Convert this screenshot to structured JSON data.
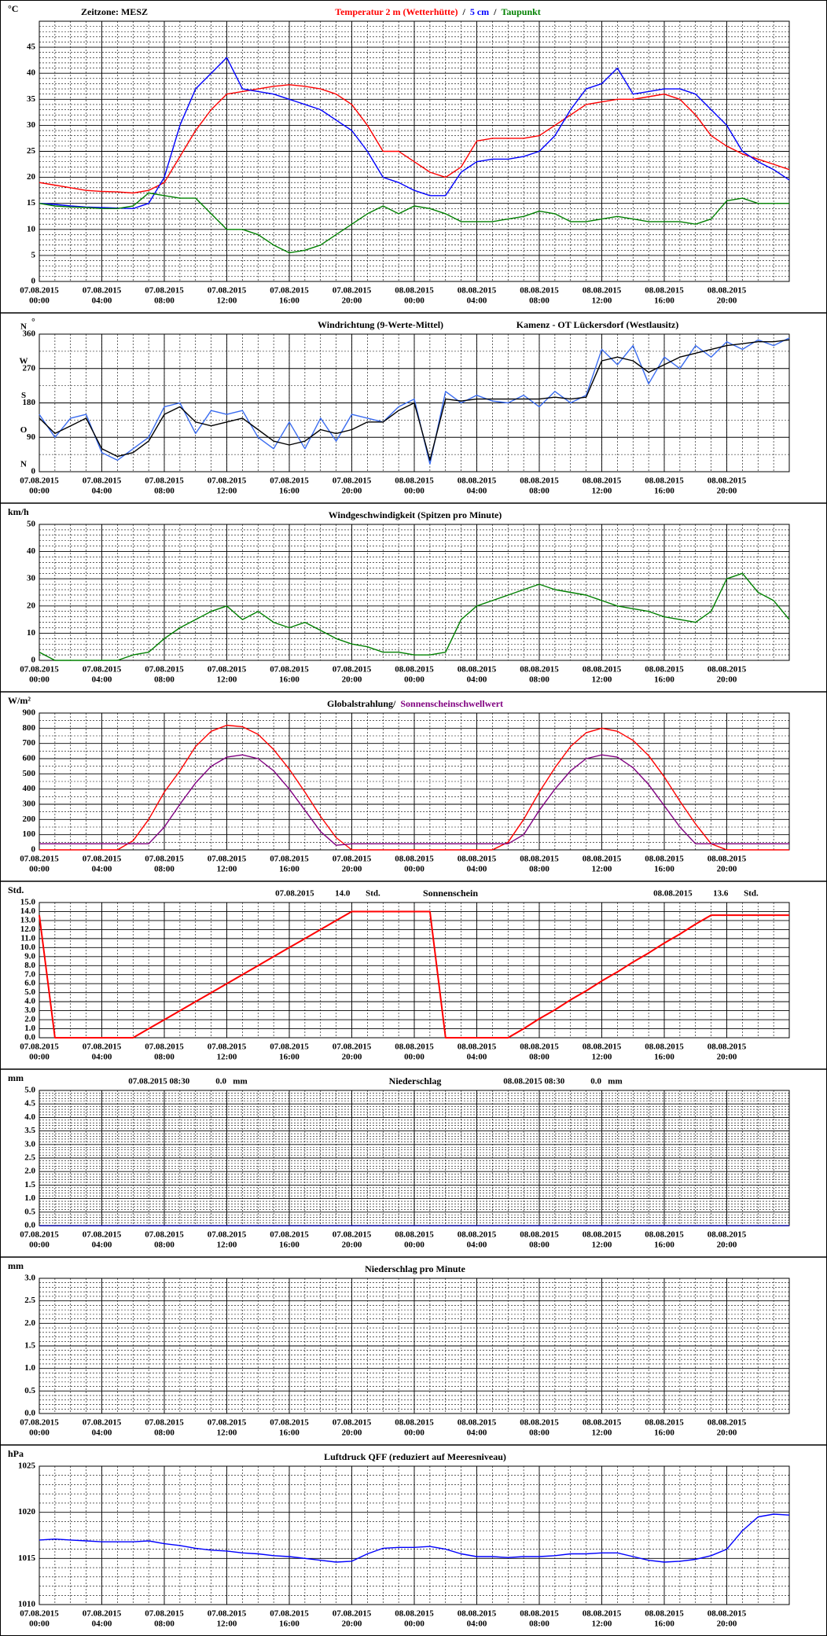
{
  "time_axis": {
    "x": [
      0,
      1,
      2,
      3,
      4,
      5,
      6,
      7,
      8,
      9,
      10,
      11,
      12,
      13,
      14,
      15,
      16,
      17,
      18,
      19,
      20,
      21,
      22,
      23,
      24,
      25,
      26,
      27,
      28,
      29,
      30,
      31,
      32,
      33,
      34,
      35,
      36,
      37,
      38,
      39,
      40,
      41,
      42,
      43,
      44,
      45,
      46,
      47,
      48
    ],
    "xlim": [
      0,
      48
    ],
    "xticks": [
      {
        "value": 0,
        "label": [
          "07.08.2015",
          "00:00"
        ]
      },
      {
        "value": 4,
        "label": [
          "07.08.2015",
          "04:00"
        ]
      },
      {
        "value": 8,
        "label": [
          "07.08.2015",
          "08:00"
        ]
      },
      {
        "value": 12,
        "label": [
          "07.08.2015",
          "12:00"
        ]
      },
      {
        "value": 16,
        "label": [
          "07.08.2015",
          "16:00"
        ]
      },
      {
        "value": 20,
        "label": [
          "07.08.2015",
          "20:00"
        ]
      },
      {
        "value": 24,
        "label": [
          "08.08.2015",
          "00:00"
        ]
      },
      {
        "value": 28,
        "label": [
          "08.08.2015",
          "04:00"
        ]
      },
      {
        "value": 32,
        "label": [
          "08.08.2015",
          "08:00"
        ]
      },
      {
        "value": 36,
        "label": [
          "08.08.2015",
          "12:00"
        ]
      },
      {
        "value": 40,
        "label": [
          "08.08.2015",
          "16:00"
        ]
      },
      {
        "value": 44,
        "label": [
          "08.08.2015",
          "20:00"
        ]
      }
    ]
  },
  "chart_data": [
    {
      "type": "line",
      "unit": "°C",
      "zone": "Zeitzone: MESZ",
      "legend_separator": "/",
      "ylim": [
        0,
        50
      ],
      "yticks": [
        0,
        5,
        10,
        15,
        20,
        25,
        30,
        35,
        40,
        45
      ],
      "grid": true,
      "series": [
        {
          "name": "Temperatur 2 m (Wetterhütte)",
          "color": "#ff0000",
          "values": [
            19,
            18.5,
            18,
            17.5,
            17.3,
            17.2,
            17,
            17.5,
            19,
            24,
            29,
            33,
            36,
            36.5,
            37,
            37.5,
            37.8,
            37.5,
            37,
            36,
            34,
            30,
            25,
            25,
            23,
            21,
            20,
            22,
            27,
            27.5,
            27.5,
            27.5,
            28,
            30,
            32,
            34,
            34.5,
            35,
            35,
            35.5,
            36,
            35,
            32,
            28,
            26,
            24.5,
            23.5,
            22.5,
            21.5
          ]
        },
        {
          "name": "5 cm",
          "color": "#0000ff",
          "values": [
            15,
            14.8,
            14.5,
            14.3,
            14.2,
            14.1,
            14,
            15,
            20,
            30,
            37,
            40,
            43,
            37,
            36.5,
            36,
            35,
            34,
            33,
            31,
            29,
            25,
            20,
            19,
            17.5,
            16.5,
            16.5,
            21,
            23,
            23.5,
            23.5,
            24,
            25,
            28,
            33,
            37,
            38,
            41,
            36,
            36.5,
            37,
            37,
            36,
            33,
            30,
            25,
            23,
            21.5,
            19.5
          ]
        },
        {
          "name": "Taupunkt",
          "color": "#008000",
          "values": [
            15,
            14.5,
            14.3,
            14.2,
            14,
            14,
            14.5,
            17,
            16.5,
            16,
            16,
            13,
            10,
            10,
            9,
            7,
            5.5,
            6,
            7,
            9,
            11,
            13,
            14.5,
            13,
            14.5,
            14,
            13,
            11.5,
            11.5,
            11.5,
            12,
            12.5,
            13.5,
            13,
            11.5,
            11.5,
            12,
            12.5,
            12,
            11.5,
            11.5,
            11.5,
            11,
            12,
            15.5,
            16,
            15,
            15,
            15
          ]
        }
      ]
    },
    {
      "type": "line",
      "unit": "°",
      "title": "Kamenz - OT Lückersdorf (Westlausitz)",
      "compass": [
        "N",
        "O",
        "S",
        "W",
        "N"
      ],
      "ylim": [
        0,
        360
      ],
      "yticks": [
        0,
        90,
        180,
        270,
        360
      ],
      "grid": true,
      "series": [
        {
          "name": "Windrichtung (9-Werte-Mittel)",
          "color": "#3a6cf0",
          "values": [
            150,
            90,
            140,
            150,
            50,
            30,
            60,
            90,
            170,
            180,
            100,
            160,
            150,
            160,
            90,
            60,
            130,
            60,
            140,
            80,
            150,
            140,
            130,
            170,
            190,
            20,
            210,
            180,
            200,
            185,
            180,
            200,
            170,
            210,
            180,
            200,
            320,
            280,
            330,
            230,
            300,
            270,
            330,
            300,
            340,
            320,
            345,
            330,
            350
          ]
        },
        {
          "color": "#000000",
          "values": [
            140,
            100,
            120,
            140,
            60,
            40,
            50,
            80,
            150,
            170,
            130,
            120,
            130,
            140,
            110,
            80,
            70,
            80,
            110,
            100,
            110,
            130,
            130,
            160,
            180,
            30,
            190,
            185,
            190,
            190,
            190,
            190,
            190,
            195,
            190,
            195,
            290,
            300,
            290,
            260,
            280,
            300,
            310,
            320,
            330,
            335,
            340,
            340,
            345
          ]
        }
      ]
    },
    {
      "type": "line",
      "unit": "km/h",
      "title": "Windgeschwindigkeit (Spitzen pro Minute)",
      "ylim": [
        0,
        50
      ],
      "yticks": [
        0,
        10,
        20,
        30,
        40,
        50
      ],
      "grid": true,
      "series": [
        {
          "color": "#008000",
          "values": [
            3,
            0,
            0,
            0,
            0,
            0,
            2,
            3,
            8,
            12,
            15,
            18,
            20,
            15,
            18,
            14,
            12,
            14,
            11,
            8,
            6,
            5,
            3,
            3,
            2,
            2,
            3,
            15,
            20,
            22,
            24,
            26,
            28,
            26,
            25,
            24,
            22,
            20,
            19,
            18,
            16,
            15,
            14,
            18,
            30,
            32,
            25,
            22,
            15
          ]
        }
      ]
    },
    {
      "type": "line",
      "unit": "W/m²",
      "title": "Globalstrahlung/",
      "ylim": [
        0,
        900
      ],
      "yticks": [
        0,
        100,
        200,
        300,
        400,
        500,
        600,
        700,
        800,
        900
      ],
      "grid": true,
      "series": [
        {
          "color": "#ff0000",
          "values": [
            0,
            0,
            0,
            0,
            0,
            0,
            60,
            200,
            380,
            520,
            680,
            780,
            820,
            810,
            760,
            660,
            530,
            380,
            220,
            80,
            0,
            0,
            0,
            0,
            0,
            0,
            0,
            0,
            0,
            0,
            50,
            200,
            380,
            540,
            680,
            770,
            800,
            780,
            720,
            620,
            480,
            320,
            170,
            40,
            0,
            0,
            0,
            0,
            0
          ]
        },
        {
          "name": "Sonnenscheinschwellwert",
          "color": "#800080",
          "values": [
            40,
            40,
            40,
            40,
            40,
            40,
            40,
            40,
            150,
            300,
            440,
            550,
            610,
            625,
            600,
            520,
            400,
            260,
            120,
            30,
            40,
            40,
            40,
            40,
            40,
            40,
            40,
            40,
            40,
            40,
            40,
            100,
            260,
            400,
            520,
            600,
            625,
            610,
            540,
            430,
            290,
            150,
            40,
            40,
            40,
            40,
            40,
            40,
            40
          ]
        }
      ]
    },
    {
      "type": "line",
      "unit": "Std.",
      "title": "Sonnenschein",
      "ylim": [
        0,
        15
      ],
      "yticks": [
        {
          "value": 0,
          "label": "0.0"
        },
        {
          "value": 1,
          "label": "1.0"
        },
        {
          "value": 2,
          "label": "2.0"
        },
        {
          "value": 3,
          "label": "3.0"
        },
        {
          "value": 4,
          "label": "4.0"
        },
        {
          "value": 5,
          "label": "5.0"
        },
        {
          "value": 6,
          "label": "6.0"
        },
        {
          "value": 7,
          "label": "7.0"
        },
        {
          "value": 8,
          "label": "8.0"
        },
        {
          "value": 9,
          "label": "9.0"
        },
        {
          "value": 10,
          "label": "10.0"
        },
        {
          "value": 11,
          "label": "11.0"
        },
        {
          "value": 12,
          "label": "12.0"
        },
        {
          "value": 13,
          "label": "13.0"
        },
        {
          "value": 14,
          "label": "14.0"
        },
        {
          "value": 15,
          "label": "15.0"
        }
      ],
      "grid": true,
      "annotations": [
        {
          "date": "07.08.2015",
          "total": {
            "value": 14,
            "label": "14.0"
          },
          "unit": "Std."
        },
        {
          "date": "08.08.2015",
          "total": {
            "value": 13.6,
            "label": "13.6"
          },
          "unit": "Std."
        }
      ],
      "series": [
        {
          "color": "#ff0000",
          "values": [
            13.6,
            0,
            0,
            0,
            0,
            0,
            0,
            1,
            2,
            3,
            4,
            5,
            6,
            7,
            8,
            9,
            10,
            11,
            12,
            13,
            14,
            14,
            14,
            14,
            14,
            14,
            0,
            0,
            0,
            0,
            0,
            1,
            2.1,
            3.1,
            4.2,
            5.2,
            6.3,
            7.3,
            8.4,
            9.4,
            10.5,
            11.5,
            12.6,
            13.6,
            13.6,
            13.6,
            13.6,
            13.6,
            13.6
          ]
        }
      ]
    },
    {
      "type": "line",
      "unit": "mm",
      "title": "Niederschlag",
      "ylim": [
        0,
        5
      ],
      "yticks": [
        {
          "value": 0,
          "label": "0.0"
        },
        {
          "value": 0.5,
          "label": "0.5"
        },
        {
          "value": 1,
          "label": "1.0"
        },
        {
          "value": 1.5,
          "label": "1.5"
        },
        {
          "value": 2,
          "label": "2.0"
        },
        {
          "value": 2.5,
          "label": "2.5"
        },
        {
          "value": 3,
          "label": "3.0"
        },
        {
          "value": 3.5,
          "label": "3.5"
        },
        {
          "value": 4,
          "label": "4.0"
        },
        {
          "value": 4.5,
          "label": "4.5"
        },
        {
          "value": 5,
          "label": "5.0"
        }
      ],
      "grid": true,
      "annotations": [
        {
          "date": "07.08.2015 08:30",
          "total": {
            "value": 0,
            "label": "0.0"
          },
          "unit": "mm"
        },
        {
          "date": "08.08.2015 08:30",
          "total": {
            "value": 0,
            "label": "0.0"
          },
          "unit": "mm"
        }
      ],
      "series": [
        {
          "color": "#0000a0",
          "values": [
            0,
            0,
            0,
            0,
            0,
            0,
            0,
            0,
            0,
            0,
            0,
            0,
            0,
            0,
            0,
            0,
            0,
            0,
            0,
            0,
            0,
            0,
            0,
            0,
            0,
            0,
            0,
            0,
            0,
            0,
            0,
            0,
            0,
            0,
            0,
            0,
            0,
            0,
            0,
            0,
            0,
            0,
            0,
            0,
            0,
            0,
            0,
            0,
            0
          ]
        }
      ]
    },
    {
      "type": "line",
      "unit": "mm",
      "title": "Niederschlag pro Minute",
      "ylim": [
        0,
        3
      ],
      "yticks": [
        {
          "value": 0,
          "label": "0.0"
        },
        {
          "value": 0.5,
          "label": "0.5"
        },
        {
          "value": 1,
          "label": "1.0"
        },
        {
          "value": 1.5,
          "label": "1.5"
        },
        {
          "value": 2,
          "label": "2.0"
        },
        {
          "value": 2.5,
          "label": "2.5"
        },
        {
          "value": 3,
          "label": "3.0"
        }
      ],
      "grid": true,
      "series": []
    },
    {
      "type": "line",
      "unit": "hPa",
      "title": "Luftdruck QFF (reduziert auf Meeresniveau)",
      "ylim": [
        1010,
        1025
      ],
      "yticks": [
        1010,
        1015,
        1020,
        1025
      ],
      "grid": true,
      "series": [
        {
          "color": "#0000ff",
          "values": [
            1017,
            1017.1,
            1017,
            1016.9,
            1016.8,
            1016.8,
            1016.8,
            1016.9,
            1016.6,
            1016.4,
            1016.1,
            1015.9,
            1015.8,
            1015.6,
            1015.5,
            1015.3,
            1015.2,
            1015,
            1014.8,
            1014.6,
            1014.7,
            1015.5,
            1016.1,
            1016.2,
            1016.2,
            1016.3,
            1016,
            1015.5,
            1015.2,
            1015.2,
            1015.1,
            1015.2,
            1015.2,
            1015.3,
            1015.5,
            1015.5,
            1015.6,
            1015.6,
            1015.2,
            1014.8,
            1014.6,
            1014.7,
            1014.9,
            1015.3,
            1016,
            1018,
            1019.5,
            1019.8,
            1019.7
          ]
        }
      ]
    }
  ]
}
